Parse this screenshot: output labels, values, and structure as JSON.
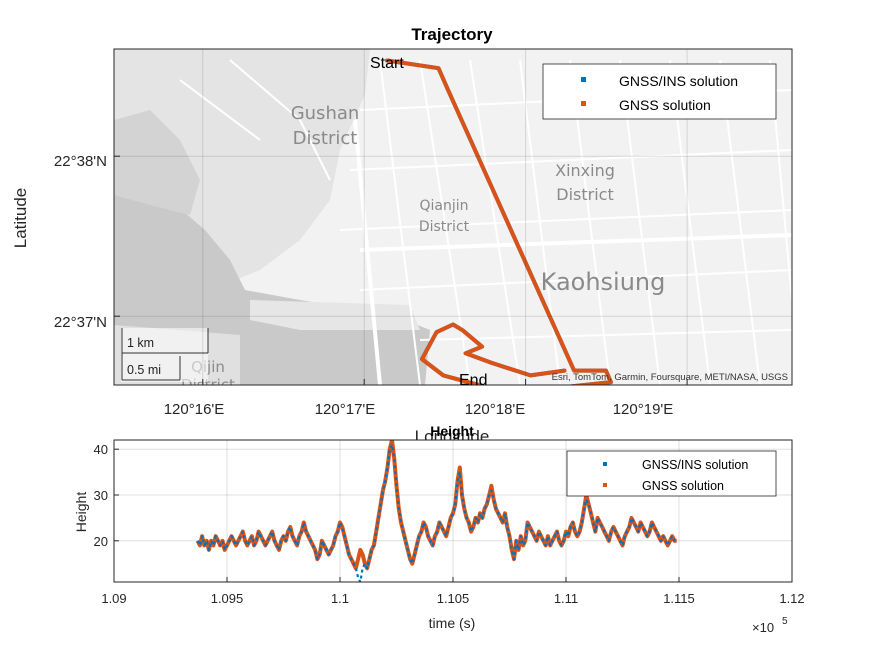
{
  "chart_data": [
    {
      "type": "map-line",
      "title": "Trajectory",
      "xlabel": "Longitude",
      "ylabel": "Latitude",
      "x_ticks": [
        "120°16'E",
        "120°17'E",
        "120°18'E",
        "120°19'E"
      ],
      "y_ticks": [
        "22°38'N",
        "22°37'N"
      ],
      "lon_range": [
        120.2575,
        120.3275
      ],
      "lat_range": [
        22.6095,
        22.6445
      ],
      "annotations": {
        "start": "Start",
        "end": "End"
      },
      "attribution": "Esri, TomTom, Garmin, Foursquare, METI/NASA, USGS",
      "scalebar": {
        "km": "1 km",
        "mi": "0.5 mi"
      },
      "map_labels": {
        "gushan_1": "Gushan",
        "gushan_2": "District",
        "xinxing_1": "Xinxing",
        "xinxing_2": "District",
        "qianjin_1": "Qianjin",
        "qianjin_2": "District",
        "kaohsiung": "Kaohsiung",
        "qijin_1": "Qijin",
        "qijin_2": "District"
      },
      "legend": [
        "GNSS/INS solution",
        "GNSS solution"
      ],
      "legend_position": "top-right",
      "grid": true,
      "series": [
        {
          "name": "GNSS/INS solution",
          "color": "#0072BD",
          "points": [
            [
              120.2857,
              22.6433
            ],
            [
              120.291,
              22.6425
            ],
            [
              120.292,
              22.6402
            ],
            [
              120.305,
              22.611
            ],
            [
              120.3083,
              22.611
            ],
            [
              120.3088,
              22.6098
            ],
            [
              120.3015,
              22.609
            ],
            [
              120.2995,
              22.6087
            ],
            [
              120.297,
              22.609
            ],
            [
              120.2915,
              22.6105
            ],
            [
              120.2893,
              22.6122
            ],
            [
              120.2908,
              22.615
            ],
            [
              120.2925,
              22.6158
            ],
            [
              120.2935,
              22.6152
            ],
            [
              120.2955,
              22.6135
            ],
            [
              120.2938,
              22.6128
            ],
            [
              120.2965,
              22.6118
            ],
            [
              120.3005,
              22.6105
            ],
            [
              120.304,
              22.611
            ]
          ]
        },
        {
          "name": "GNSS solution",
          "color": "#D95319",
          "points": [
            [
              120.2857,
              22.6433
            ],
            [
              120.291,
              22.6425
            ],
            [
              120.292,
              22.6402
            ],
            [
              120.305,
              22.611
            ],
            [
              120.3083,
              22.611
            ],
            [
              120.3088,
              22.6098
            ],
            [
              120.3015,
              22.609
            ],
            [
              120.2995,
              22.6087
            ],
            [
              120.297,
              22.609
            ],
            [
              120.2915,
              22.6105
            ],
            [
              120.2893,
              22.6122
            ],
            [
              120.2908,
              22.615
            ],
            [
              120.2925,
              22.6158
            ],
            [
              120.2935,
              22.6152
            ],
            [
              120.2955,
              22.6135
            ],
            [
              120.2938,
              22.6128
            ],
            [
              120.2965,
              22.6118
            ],
            [
              120.3005,
              22.6105
            ],
            [
              120.304,
              22.611
            ]
          ]
        }
      ]
    },
    {
      "type": "line",
      "title": "Height",
      "xlabel": "time (s)",
      "ylabel": "Height",
      "xlim": [
        1.09,
        1.12
      ],
      "ylim": [
        11,
        42
      ],
      "x_ticks": [
        "1.09",
        "1.095",
        "1.1",
        "1.105",
        "1.11",
        "1.115",
        "1.12"
      ],
      "y_ticks": [
        "20",
        "30",
        "40"
      ],
      "x_multiplier": "×10",
      "x_multiplier_exp": "5",
      "legend": [
        "GNSS/INS solution",
        "GNSS solution"
      ],
      "legend_position": "top-right",
      "grid": true,
      "x_start": 1.0937,
      "x_step": 0.0001,
      "series": [
        {
          "name": "GNSS solution",
          "color": "#D95319",
          "values": [
            20,
            19,
            21,
            19,
            20,
            18,
            20,
            19,
            21,
            20,
            19,
            20,
            18,
            19,
            20,
            21,
            20,
            19,
            20,
            21,
            22,
            20,
            19,
            20,
            21,
            19,
            20,
            22,
            21,
            20,
            19,
            20,
            21,
            22,
            20,
            19,
            18,
            20,
            21,
            20,
            22,
            23,
            21,
            20,
            19,
            21,
            22,
            24,
            22,
            21,
            20,
            19,
            18,
            16,
            17,
            20,
            19,
            18,
            17,
            18,
            19,
            21,
            22,
            24,
            23,
            21,
            19,
            17,
            16,
            15,
            14,
            16,
            18,
            17,
            15,
            14,
            16,
            18,
            19,
            22,
            25,
            28,
            31,
            33,
            36,
            40,
            42,
            38,
            32,
            27,
            24,
            22,
            20,
            18,
            16,
            15,
            17,
            19,
            21,
            22,
            24,
            23,
            21,
            20,
            19,
            21,
            22,
            24,
            23,
            22,
            21,
            23,
            25,
            26,
            28,
            33,
            36,
            30,
            27,
            25,
            24,
            22,
            23,
            25,
            24,
            26,
            25,
            27,
            28,
            30,
            32,
            29,
            27,
            26,
            25,
            24,
            26,
            23,
            21,
            18,
            16,
            20,
            18,
            21,
            19,
            20,
            24,
            23,
            22,
            21,
            20,
            22,
            21,
            20,
            19,
            21,
            19,
            20,
            21,
            22,
            20,
            19,
            20,
            22,
            21,
            23,
            24,
            22,
            21,
            22,
            24,
            27,
            30,
            28,
            26,
            24,
            22,
            25,
            24,
            23,
            22,
            21,
            20,
            22,
            23,
            22,
            21,
            20,
            19,
            21,
            22,
            23,
            25,
            24,
            23,
            22,
            24,
            23,
            22,
            21,
            22,
            24,
            23,
            22,
            21,
            20,
            21,
            20,
            19,
            20,
            21,
            20,
            20
          ],
          "note": ""
        },
        {
          "name": "GNSS/INS solution",
          "color": "#0072BD",
          "values": [
            20,
            19,
            21,
            19,
            20,
            18,
            20,
            19,
            21,
            20,
            19,
            20,
            18,
            19,
            20,
            21,
            20,
            19,
            20,
            21,
            22,
            20,
            19,
            20,
            21,
            19,
            20,
            22,
            21,
            20,
            19,
            20,
            21,
            22,
            20,
            19,
            18,
            20,
            21,
            20,
            22,
            23,
            21,
            20,
            19,
            21,
            22,
            24,
            22,
            21,
            20,
            19,
            18,
            16,
            17,
            20,
            19,
            18,
            17,
            18,
            19,
            21,
            22,
            24,
            23,
            21,
            19,
            17,
            16,
            15,
            14,
            12,
            11,
            14,
            15,
            14,
            16,
            18,
            19,
            22,
            25,
            28,
            31,
            33,
            36,
            40,
            41,
            38,
            32,
            27,
            24,
            22,
            20,
            18,
            16,
            15,
            17,
            19,
            21,
            22,
            24,
            23,
            21,
            20,
            19,
            21,
            22,
            24,
            23,
            22,
            21,
            23,
            25,
            26,
            28,
            33,
            35,
            30,
            27,
            25,
            24,
            22,
            23,
            25,
            24,
            26,
            25,
            27,
            28,
            30,
            31,
            29,
            27,
            26,
            25,
            24,
            26,
            23,
            21,
            18,
            16,
            20,
            18,
            21,
            19,
            20,
            24,
            23,
            22,
            21,
            20,
            22,
            21,
            20,
            19,
            21,
            19,
            20,
            21,
            22,
            20,
            19,
            20,
            22,
            21,
            23,
            24,
            22,
            21,
            22,
            24,
            27,
            29,
            28,
            26,
            24,
            22,
            25,
            24,
            23,
            22,
            21,
            20,
            22,
            23,
            22,
            21,
            20,
            19,
            21,
            22,
            23,
            25,
            24,
            23,
            22,
            24,
            23,
            22,
            21,
            22,
            24,
            23,
            22,
            21,
            20,
            21,
            20,
            19,
            20,
            21,
            20,
            20
          ],
          "note": ""
        }
      ]
    }
  ]
}
